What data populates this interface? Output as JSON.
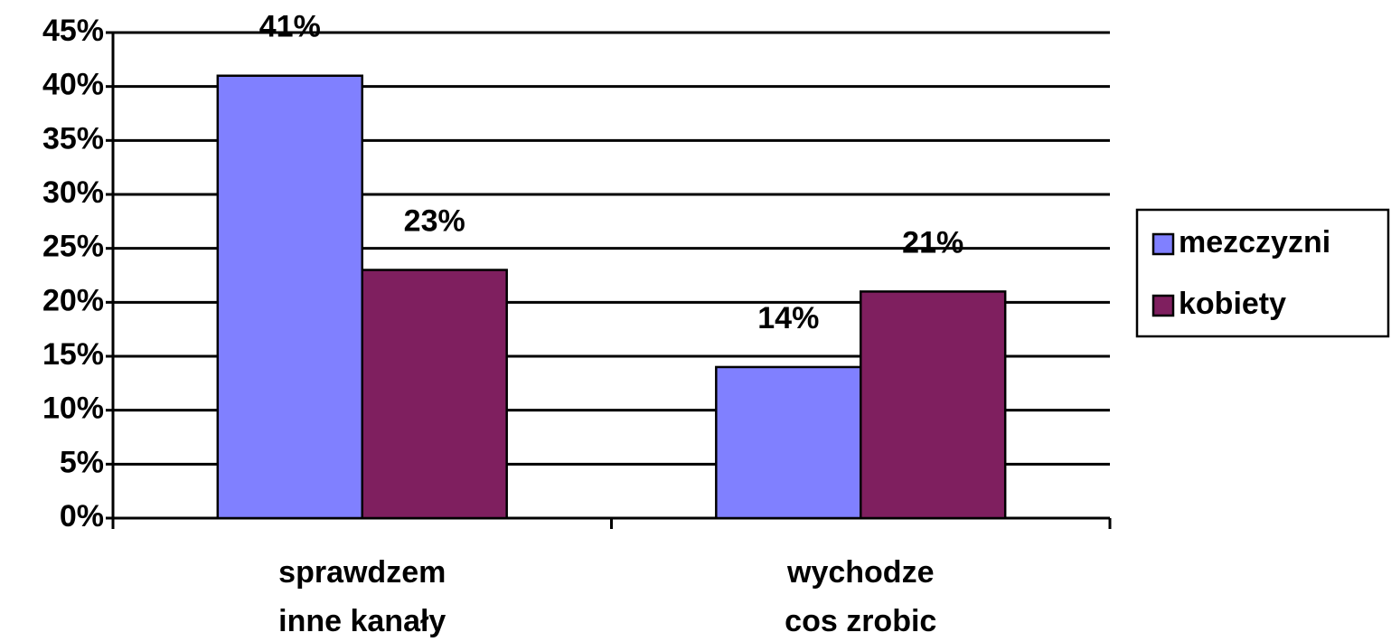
{
  "chart_data": {
    "type": "bar",
    "categories": [
      [
        "sprawdzem",
        "inne kanały"
      ],
      [
        "wychodze",
        "cos zrobic"
      ]
    ],
    "series": [
      {
        "name": "mezczyzni",
        "color": "#8080ff",
        "values": [
          41,
          14
        ],
        "value_labels": [
          "41%",
          "14%"
        ]
      },
      {
        "name": "kobiety",
        "color": "#7f1f5f",
        "values": [
          23,
          21
        ],
        "value_labels": [
          "23%",
          "21%"
        ]
      }
    ],
    "ylim": [
      0,
      45
    ],
    "yticks": [
      {
        "value": 0,
        "label": "0%"
      },
      {
        "value": 5,
        "label": "5%"
      },
      {
        "value": 10,
        "label": "10%"
      },
      {
        "value": 15,
        "label": "15%"
      },
      {
        "value": 20,
        "label": "20%"
      },
      {
        "value": 25,
        "label": "25%"
      },
      {
        "value": 30,
        "label": "30%"
      },
      {
        "value": 35,
        "label": "35%"
      },
      {
        "value": 40,
        "label": "40%"
      },
      {
        "value": 45,
        "label": "45%"
      }
    ],
    "grid": true,
    "legend": "right"
  }
}
